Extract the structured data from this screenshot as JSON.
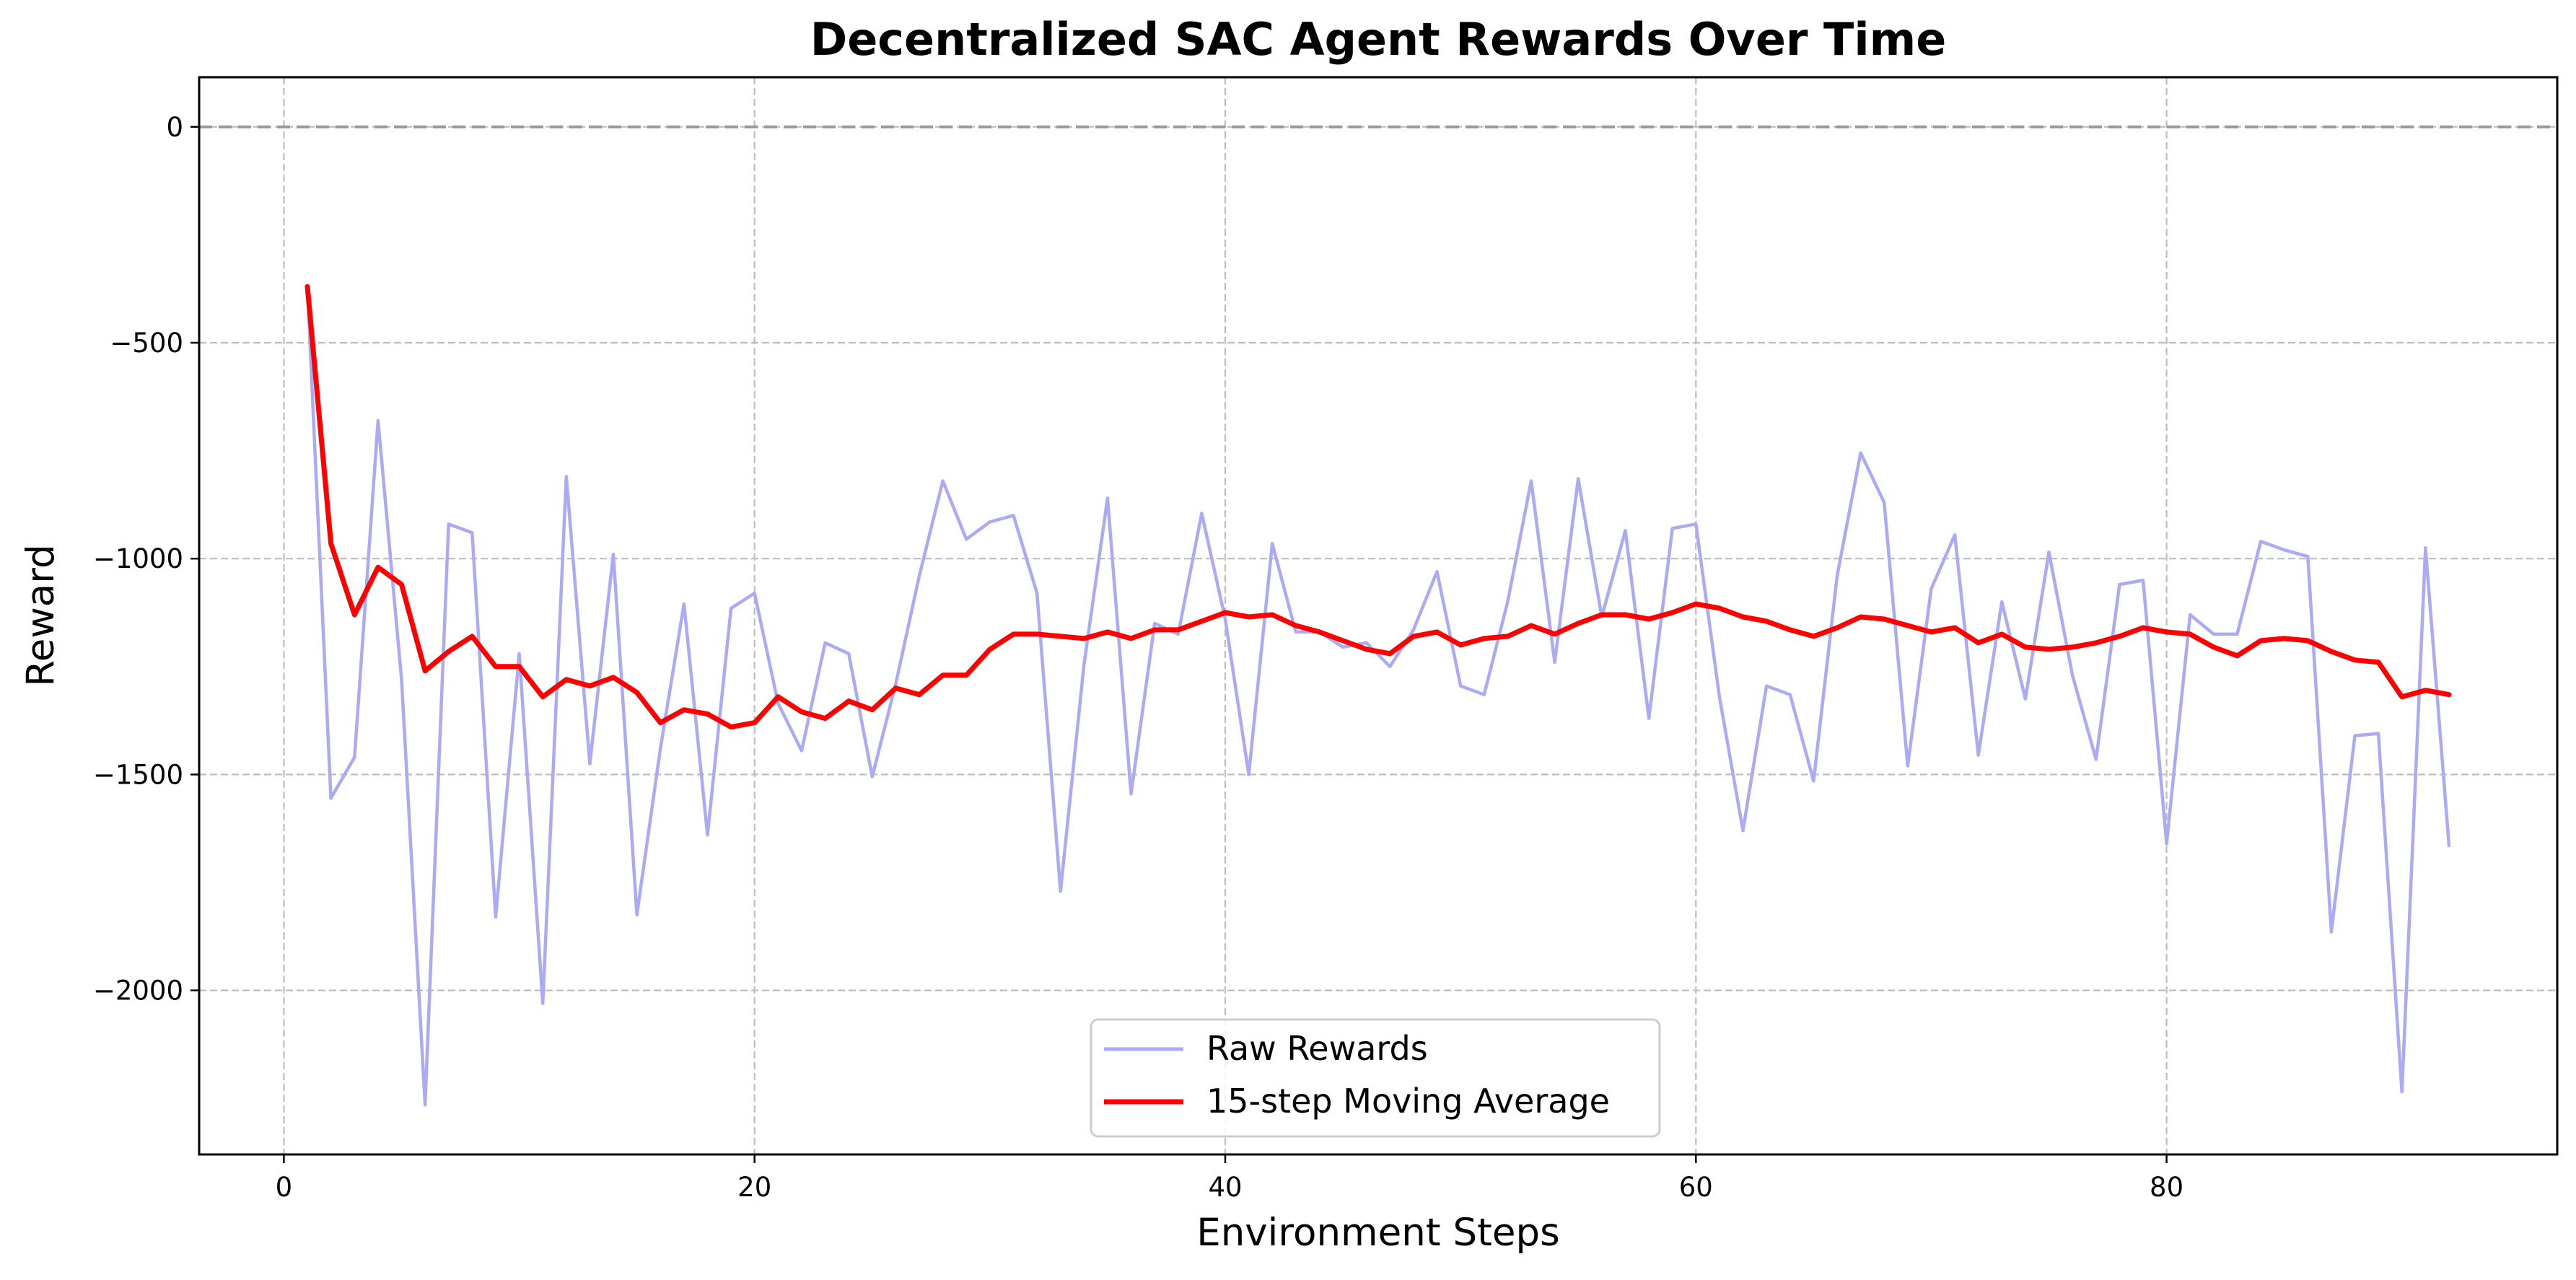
{
  "chart_data": {
    "type": "line",
    "title": "Decentralized SAC Agent Rewards Over Time",
    "xlabel": "Environment Steps",
    "ylabel": "Reward",
    "xlim": [
      -3.6,
      96.6
    ],
    "ylim": [
      -2380,
      115
    ],
    "xticks": [
      0,
      20,
      40,
      60,
      80
    ],
    "yticks": [
      0,
      -500,
      -1000,
      -1500,
      -2000
    ],
    "xtick_labels": [
      "0",
      "20",
      "40",
      "60",
      "80"
    ],
    "ytick_labels": [
      "0",
      "−500",
      "−1000",
      "−1500",
      "−2000"
    ],
    "grid": true,
    "reference_line": {
      "y": 0,
      "style": "dashed",
      "color": "#999999"
    },
    "legend_position": "lower center",
    "series": [
      {
        "name": "Raw Rewards",
        "color": "#aaaaf5",
        "x": [
          1,
          2,
          3,
          4,
          5,
          6,
          7,
          8,
          9,
          10,
          11,
          12,
          13,
          14,
          15,
          16,
          17,
          18,
          19,
          20,
          21,
          22,
          23,
          24,
          25,
          26,
          27,
          28,
          29,
          30,
          31,
          32,
          33,
          34,
          35,
          36,
          37,
          38,
          39,
          40,
          41,
          42,
          43,
          44,
          45,
          46,
          47,
          48,
          49,
          50,
          51,
          52,
          53,
          54,
          55,
          56,
          57,
          58,
          59,
          60,
          61,
          62,
          63,
          64,
          65,
          66,
          67,
          68,
          69,
          70,
          71,
          72,
          73,
          74,
          75,
          76,
          77,
          78,
          79,
          80,
          81,
          82,
          83,
          84,
          85,
          86,
          87,
          88,
          89,
          90,
          91,
          92
        ],
        "values": [
          -370,
          -1555,
          -1460,
          -680,
          -1280,
          -2265,
          -920,
          -940,
          -1830,
          -1220,
          -2030,
          -810,
          -1475,
          -990,
          -1825,
          -1440,
          -1105,
          -1640,
          -1115,
          -1080,
          -1335,
          -1445,
          -1195,
          -1220,
          -1505,
          -1290,
          -1040,
          -820,
          -955,
          -915,
          -900,
          -1080,
          -1770,
          -1245,
          -860,
          -1545,
          -1150,
          -1175,
          -895,
          -1140,
          -1500,
          -965,
          -1170,
          -1170,
          -1205,
          -1195,
          -1250,
          -1165,
          -1030,
          -1295,
          -1315,
          -1100,
          -820,
          -1240,
          -815,
          -1135,
          -935,
          -1370,
          -930,
          -920,
          -1320,
          -1630,
          -1295,
          -1315,
          -1515,
          -1040,
          -755,
          -870,
          -1480,
          -1070,
          -945,
          -1455,
          -1100,
          -1325,
          -985,
          -1270,
          -1465,
          -1060,
          -1050,
          -1660,
          -1130,
          -1175,
          -1175,
          -960,
          -980,
          -995,
          -1865,
          -1410,
          -1405,
          -2235,
          -975,
          -1665
        ]
      },
      {
        "name": "15-step Moving Average",
        "color": "#ff0000",
        "x": [
          1,
          2,
          3,
          4,
          5,
          6,
          7,
          8,
          9,
          10,
          11,
          12,
          13,
          14,
          15,
          16,
          17,
          18,
          19,
          20,
          21,
          22,
          23,
          24,
          25,
          26,
          27,
          28,
          29,
          30,
          31,
          32,
          33,
          34,
          35,
          36,
          37,
          38,
          39,
          40,
          41,
          42,
          43,
          44,
          45,
          46,
          47,
          48,
          49,
          50,
          51,
          52,
          53,
          54,
          55,
          56,
          57,
          58,
          59,
          60,
          61,
          62,
          63,
          64,
          65,
          66,
          67,
          68,
          69,
          70,
          71,
          72,
          73,
          74,
          75,
          76,
          77,
          78,
          79,
          80,
          81,
          82,
          83,
          84,
          85,
          86,
          87,
          88,
          89,
          90,
          91,
          92
        ],
        "values": [
          -370,
          -965,
          -1130,
          -1020,
          -1060,
          -1260,
          -1215,
          -1180,
          -1250,
          -1250,
          -1320,
          -1280,
          -1295,
          -1275,
          -1310,
          -1380,
          -1350,
          -1360,
          -1390,
          -1380,
          -1320,
          -1355,
          -1370,
          -1330,
          -1350,
          -1300,
          -1315,
          -1270,
          -1270,
          -1210,
          -1175,
          -1175,
          -1180,
          -1185,
          -1170,
          -1185,
          -1165,
          -1165,
          -1145,
          -1125,
          -1135,
          -1130,
          -1155,
          -1170,
          -1190,
          -1210,
          -1220,
          -1180,
          -1170,
          -1200,
          -1185,
          -1180,
          -1155,
          -1175,
          -1150,
          -1130,
          -1130,
          -1140,
          -1125,
          -1105,
          -1115,
          -1135,
          -1145,
          -1165,
          -1180,
          -1160,
          -1135,
          -1140,
          -1155,
          -1170,
          -1160,
          -1195,
          -1175,
          -1205,
          -1210,
          -1205,
          -1195,
          -1180,
          -1160,
          -1170,
          -1175,
          -1205,
          -1225,
          -1190,
          -1185,
          -1190,
          -1215,
          -1235,
          -1240,
          -1320,
          -1305,
          -1315
        ]
      }
    ]
  }
}
